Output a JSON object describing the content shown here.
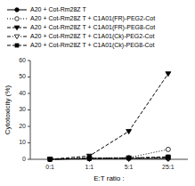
{
  "chart_data": {
    "type": "line",
    "x_label": "E:T ratio :",
    "y_label": "Cytotoxicity (%)",
    "categories": [
      "0:1",
      "1:1",
      "5:1",
      "25:1"
    ],
    "ylim": [
      0,
      60
    ],
    "yticks": [
      0,
      10,
      20,
      30,
      40,
      50,
      60
    ],
    "legend": "top",
    "series": [
      {
        "name": "A20 + Cot-Rm28Z T",
        "color": "black",
        "marker": "circle",
        "line_style": "solid",
        "values": [
          0,
          0.5,
          0.5,
          0.5
        ]
      },
      {
        "name": "A20 + Cot-Rm28Z T + C1A01(FR)-PEG2-Cot",
        "color": "black",
        "marker": "circle-open",
        "line_style": "dotted",
        "values": [
          0,
          0.8,
          1.0,
          6.0
        ]
      },
      {
        "name": "A20 + Cot-Rm28Z T + C1A01(FR)-PEG8-Cot",
        "color": "black",
        "marker": "triangle-down",
        "line_style": "dashed",
        "values": [
          0,
          2.0,
          17.0,
          52.0
        ]
      },
      {
        "name": "A20 + Cot-Rm28Z T + C1A01(Ck)-PEG2-Cot",
        "color": "black",
        "marker": "triangle-down-open",
        "line_style": "dashdot",
        "values": [
          0,
          0.5,
          0.8,
          1.0
        ]
      },
      {
        "name": "A20 + Cot-Rm28Z T + C1A01(Ck)-PEG8-Cot",
        "color": "black",
        "marker": "square",
        "line_style": "dashed",
        "values": [
          0,
          0.5,
          0.8,
          1.5
        ]
      }
    ]
  }
}
